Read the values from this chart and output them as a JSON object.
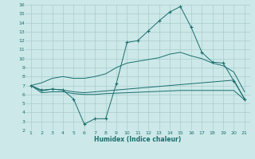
{
  "xlabel": "Humidex (Indice chaleur)",
  "xlim": [
    0.5,
    21.5
  ],
  "ylim": [
    2,
    16
  ],
  "yticks": [
    2,
    3,
    4,
    5,
    6,
    7,
    8,
    9,
    10,
    11,
    12,
    13,
    14,
    15,
    16
  ],
  "xticks": [
    1,
    2,
    3,
    4,
    5,
    6,
    7,
    8,
    9,
    10,
    11,
    12,
    13,
    14,
    15,
    16,
    17,
    18,
    19,
    20,
    21
  ],
  "bg_color": "#cce8e8",
  "grid_color": "#aacccc",
  "line_color": "#1a6e6e",
  "series": [
    {
      "x": [
        1,
        2,
        3,
        4,
        5,
        6,
        7,
        8,
        9,
        10,
        11,
        12,
        13,
        14,
        15,
        16,
        17,
        18,
        19,
        20,
        21
      ],
      "y": [
        7.0,
        6.5,
        6.6,
        6.5,
        5.5,
        2.7,
        3.3,
        3.3,
        7.2,
        11.8,
        12.0,
        13.1,
        14.2,
        15.2,
        15.8,
        13.5,
        10.7,
        9.6,
        9.5,
        7.5,
        5.5
      ],
      "marker": "+"
    },
    {
      "x": [
        1,
        2,
        3,
        4,
        5,
        6,
        7,
        8,
        9,
        10,
        11,
        12,
        13,
        14,
        15,
        16,
        17,
        18,
        19,
        20,
        21
      ],
      "y": [
        7.0,
        6.4,
        6.6,
        6.5,
        6.3,
        6.2,
        6.3,
        6.4,
        6.5,
        6.6,
        6.7,
        6.8,
        6.9,
        7.0,
        7.1,
        7.2,
        7.3,
        7.4,
        7.5,
        7.6,
        5.5
      ],
      "marker": null
    },
    {
      "x": [
        1,
        2,
        3,
        4,
        5,
        6,
        7,
        8,
        9,
        10,
        11,
        12,
        13,
        14,
        15,
        16,
        17,
        18,
        19,
        20,
        21
      ],
      "y": [
        7.0,
        6.2,
        6.3,
        6.3,
        6.1,
        6.0,
        6.0,
        6.1,
        6.15,
        6.2,
        6.25,
        6.3,
        6.35,
        6.4,
        6.45,
        6.45,
        6.45,
        6.45,
        6.45,
        6.45,
        5.4
      ],
      "marker": null
    },
    {
      "x": [
        1,
        2,
        3,
        4,
        5,
        6,
        7,
        8,
        9,
        10,
        11,
        12,
        13,
        14,
        15,
        16,
        17,
        18,
        19,
        20,
        21
      ],
      "y": [
        7.0,
        7.3,
        7.8,
        8.0,
        7.8,
        7.8,
        8.0,
        8.3,
        9.0,
        9.5,
        9.7,
        9.9,
        10.1,
        10.5,
        10.7,
        10.3,
        10.0,
        9.5,
        9.2,
        8.5,
        6.3
      ],
      "marker": null
    }
  ]
}
